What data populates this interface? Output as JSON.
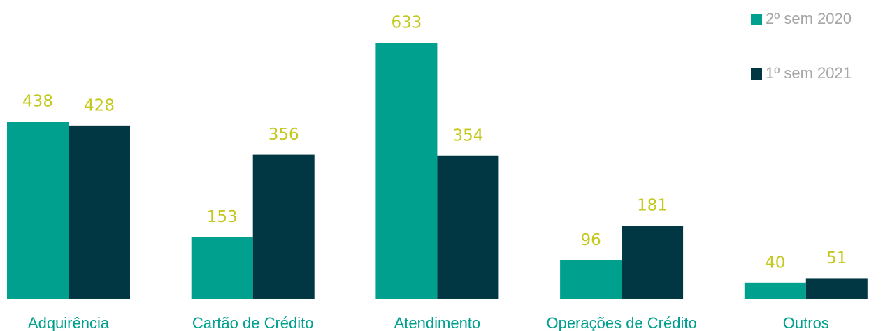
{
  "chart_data": {
    "type": "bar",
    "categories": [
      "Adquirência",
      "Cartão de Crédito",
      "Atendimento",
      "Operações de Crédito",
      "Outros"
    ],
    "series": [
      {
        "name": "2º sem 2020",
        "color": "#00a08e",
        "values": [
          438,
          153,
          633,
          96,
          40
        ]
      },
      {
        "name": "1º sem 2021",
        "color": "#003743",
        "values": [
          428,
          356,
          354,
          181,
          51
        ]
      }
    ],
    "legend": "top-right"
  }
}
